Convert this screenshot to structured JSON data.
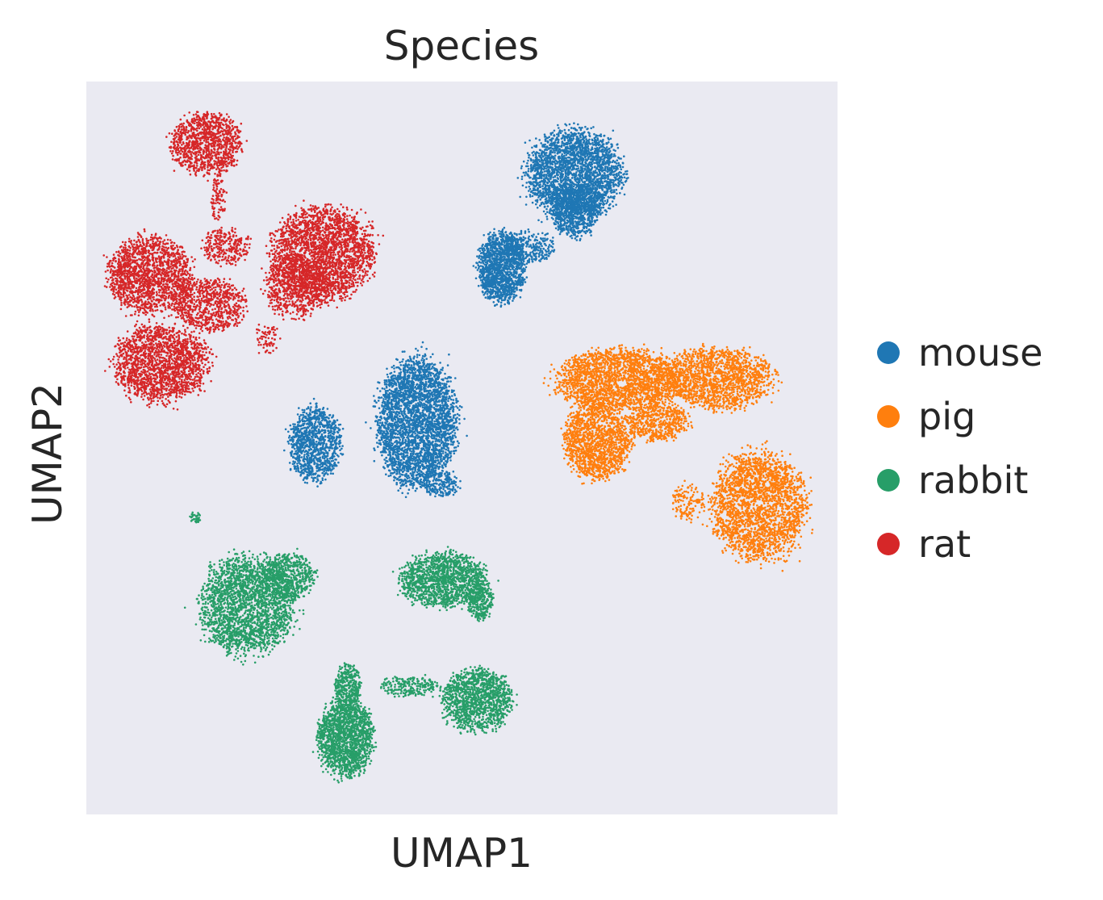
{
  "chart_data": {
    "type": "scatter",
    "title": "Species",
    "xlabel": "UMAP1",
    "ylabel": "UMAP2",
    "xlim": [
      0,
      100
    ],
    "ylim": [
      0,
      100
    ],
    "grid": false,
    "legend_position": "right",
    "background_color": "#eaeaf2",
    "series": [
      {
        "name": "mouse",
        "color": "#1f77b4",
        "clusters": [
          {
            "cx": 65.0,
            "cy": 87.3,
            "rx": 6.2,
            "ry": 5.8,
            "weight": 3.0
          },
          {
            "cx": 65.0,
            "cy": 82.5,
            "rx": 3.0,
            "ry": 3.5,
            "weight": 0.8
          },
          {
            "cx": 55.3,
            "cy": 74.5,
            "rx": 3.0,
            "ry": 4.6,
            "weight": 1.6
          },
          {
            "cx": 59.0,
            "cy": 77.5,
            "rx": 3.2,
            "ry": 2.2,
            "weight": 0.3
          },
          {
            "cx": 44.0,
            "cy": 53.5,
            "rx": 5.0,
            "ry": 8.5,
            "weight": 3.6
          },
          {
            "cx": 30.5,
            "cy": 50.5,
            "rx": 3.3,
            "ry": 4.8,
            "weight": 1.2
          },
          {
            "cx": 47.0,
            "cy": 45.0,
            "rx": 2.5,
            "ry": 1.6,
            "weight": 0.2
          }
        ]
      },
      {
        "name": "pig",
        "color": "#ff7f0e",
        "clusters": [
          {
            "cx": 71.0,
            "cy": 59.3,
            "rx": 8.0,
            "ry": 4.0,
            "weight": 2.4
          },
          {
            "cx": 84.0,
            "cy": 59.5,
            "rx": 7.0,
            "ry": 4.0,
            "weight": 1.8
          },
          {
            "cx": 68.0,
            "cy": 51.0,
            "rx": 4.2,
            "ry": 5.0,
            "weight": 1.6
          },
          {
            "cx": 76.0,
            "cy": 53.5,
            "rx": 4.0,
            "ry": 2.5,
            "weight": 0.6
          },
          {
            "cx": 89.5,
            "cy": 42.0,
            "rx": 6.0,
            "ry": 7.0,
            "weight": 2.6
          },
          {
            "cx": 80.0,
            "cy": 42.5,
            "rx": 2.0,
            "ry": 2.5,
            "weight": 0.15
          }
        ]
      },
      {
        "name": "rabbit",
        "color": "#279e68",
        "clusters": [
          {
            "cx": 21.5,
            "cy": 28.5,
            "rx": 6.0,
            "ry": 6.5,
            "weight": 2.6
          },
          {
            "cx": 27.0,
            "cy": 32.5,
            "rx": 3.2,
            "ry": 3.0,
            "weight": 0.6
          },
          {
            "cx": 14.5,
            "cy": 40.5,
            "rx": 0.8,
            "ry": 0.7,
            "weight": 0.04
          },
          {
            "cx": 47.5,
            "cy": 32.0,
            "rx": 5.5,
            "ry": 3.5,
            "weight": 1.6
          },
          {
            "cx": 52.5,
            "cy": 29.0,
            "rx": 1.5,
            "ry": 2.5,
            "weight": 0.3
          },
          {
            "cx": 34.5,
            "cy": 10.5,
            "rx": 3.5,
            "ry": 5.0,
            "weight": 1.8
          },
          {
            "cx": 34.8,
            "cy": 17.5,
            "rx": 1.6,
            "ry": 3.0,
            "weight": 0.4
          },
          {
            "cx": 52.0,
            "cy": 15.5,
            "rx": 4.5,
            "ry": 4.0,
            "weight": 1.4
          },
          {
            "cx": 43.0,
            "cy": 17.5,
            "rx": 3.5,
            "ry": 1.4,
            "weight": 0.25
          }
        ]
      },
      {
        "name": "rat",
        "color": "#d62728",
        "clusters": [
          {
            "cx": 16.0,
            "cy": 91.5,
            "rx": 4.5,
            "ry": 4.0,
            "weight": 1.2
          },
          {
            "cx": 31.5,
            "cy": 76.5,
            "rx": 6.5,
            "ry": 6.0,
            "weight": 2.6
          },
          {
            "cx": 28.0,
            "cy": 72.0,
            "rx": 4.0,
            "ry": 4.0,
            "weight": 0.8
          },
          {
            "cx": 8.5,
            "cy": 73.5,
            "rx": 5.5,
            "ry": 5.0,
            "weight": 1.8
          },
          {
            "cx": 16.5,
            "cy": 69.5,
            "rx": 4.5,
            "ry": 3.5,
            "weight": 0.8
          },
          {
            "cx": 10.0,
            "cy": 61.5,
            "rx": 6.0,
            "ry": 5.0,
            "weight": 2.0
          },
          {
            "cx": 18.5,
            "cy": 77.5,
            "rx": 3.0,
            "ry": 2.5,
            "weight": 0.3
          },
          {
            "cx": 17.5,
            "cy": 84.0,
            "rx": 1.0,
            "ry": 3.0,
            "weight": 0.1
          },
          {
            "cx": 24.0,
            "cy": 65.0,
            "rx": 1.5,
            "ry": 2.0,
            "weight": 0.08
          }
        ]
      }
    ]
  }
}
